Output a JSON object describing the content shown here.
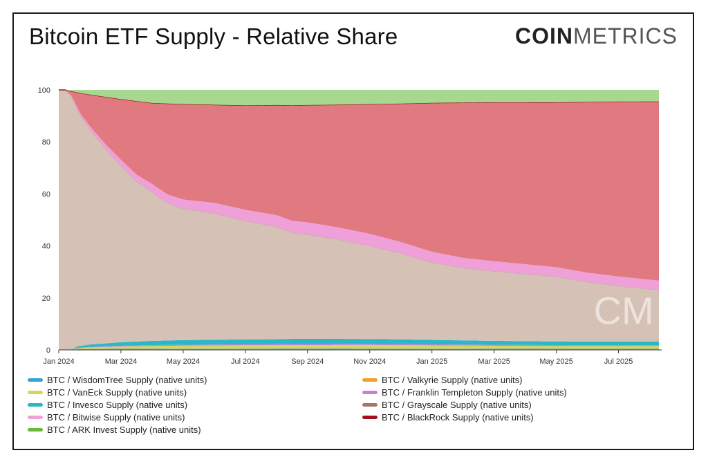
{
  "header": {
    "title": "Bitcoin ETF Supply - Relative Share",
    "brand_bold": "COIN",
    "brand_light": "METRICS"
  },
  "chart_data": {
    "type": "area",
    "stacked": "percent",
    "title": "Bitcoin ETF Supply - Relative Share",
    "xlabel": "",
    "ylabel": "",
    "ylim": [
      0,
      100
    ],
    "yticks": [
      0,
      20,
      40,
      60,
      80,
      100
    ],
    "x_tick_labels": [
      "Jan 2024",
      "Mar 2024",
      "May 2024",
      "Jul 2024",
      "Sep 2024",
      "Nov 2024",
      "Jan 2025",
      "Mar 2025",
      "May 2025",
      "Jul 2025"
    ],
    "x_tick_months": [
      0,
      2,
      4,
      6,
      8,
      10,
      12,
      14,
      16,
      18
    ],
    "x_end_month": 19.3,
    "watermark": "CM",
    "series": [
      {
        "name": "BTC / Valkyrie Supply (native units)",
        "color": "#f0a030",
        "points": [
          [
            0,
            0
          ],
          [
            0.4,
            0
          ],
          [
            0.6,
            0.15
          ],
          [
            1,
            0.2
          ],
          [
            2,
            0.25
          ],
          [
            4,
            0.3
          ],
          [
            8,
            0.35
          ],
          [
            12,
            0.3
          ],
          [
            16,
            0.25
          ],
          [
            19.3,
            0.25
          ]
        ]
      },
      {
        "name": "BTC / WisdomTree Supply (native units)",
        "color": "#3aa0d8",
        "points": [
          [
            0,
            0
          ],
          [
            0.4,
            0
          ],
          [
            0.6,
            0.1
          ],
          [
            1,
            0.15
          ],
          [
            4,
            0.15
          ],
          [
            8,
            0.2
          ],
          [
            12,
            0.15
          ],
          [
            16,
            0.15
          ],
          [
            19.3,
            0.15
          ]
        ]
      },
      {
        "name": "BTC / VanEck Supply (native units)",
        "color": "#d7d55a",
        "points": [
          [
            0,
            0
          ],
          [
            0.4,
            0
          ],
          [
            0.6,
            0.4
          ],
          [
            1,
            0.6
          ],
          [
            2,
            0.9
          ],
          [
            3,
            1.1
          ],
          [
            4,
            1.2
          ],
          [
            6,
            1.3
          ],
          [
            8,
            1.3
          ],
          [
            10,
            1.4
          ],
          [
            12,
            1.3
          ],
          [
            14,
            1.2
          ],
          [
            16,
            1.1
          ],
          [
            19.3,
            1.1
          ]
        ]
      },
      {
        "name": "BTC / Franklin Templeton Supply (native units)",
        "color": "#c77fe0",
        "points": [
          [
            0,
            0
          ],
          [
            0.4,
            0
          ],
          [
            0.6,
            0.1
          ],
          [
            1,
            0.2
          ],
          [
            2,
            0.3
          ],
          [
            4,
            0.35
          ],
          [
            8,
            0.4
          ],
          [
            12,
            0.4
          ],
          [
            16,
            0.35
          ],
          [
            19.3,
            0.35
          ]
        ]
      },
      {
        "name": "BTC / Invesco Supply (native units)",
        "color": "#28b8c8",
        "points": [
          [
            0,
            0
          ],
          [
            0.4,
            0
          ],
          [
            0.6,
            0.6
          ],
          [
            1,
            0.9
          ],
          [
            2,
            1.3
          ],
          [
            3,
            1.6
          ],
          [
            4,
            1.8
          ],
          [
            6,
            1.9
          ],
          [
            8,
            2.0
          ],
          [
            10,
            1.9
          ],
          [
            12,
            1.7
          ],
          [
            14,
            1.5
          ],
          [
            16,
            1.4
          ],
          [
            19.3,
            1.4
          ]
        ]
      },
      {
        "name": "BTC / Grayscale Supply (native units)",
        "color": "#d5c1b5",
        "points": [
          [
            0,
            100
          ],
          [
            0.15,
            99.9
          ],
          [
            0.4,
            97.5
          ],
          [
            0.7,
            88
          ],
          [
            1,
            82
          ],
          [
            1.5,
            74
          ],
          [
            2,
            67
          ],
          [
            2.5,
            61
          ],
          [
            3,
            57
          ],
          [
            3.5,
            53
          ],
          [
            4,
            51
          ],
          [
            5,
            49
          ],
          [
            6,
            46
          ],
          [
            7,
            44
          ],
          [
            7.5,
            40.5
          ],
          [
            8,
            40
          ],
          [
            9,
            38
          ],
          [
            10,
            36
          ],
          [
            11,
            33
          ],
          [
            12,
            30
          ],
          [
            13,
            28
          ],
          [
            14,
            27
          ],
          [
            15,
            26
          ],
          [
            16,
            25
          ],
          [
            17,
            23
          ],
          [
            18,
            21.5
          ],
          [
            19.3,
            20
          ]
        ]
      },
      {
        "name": "BTC / Bitwise Supply (native units)",
        "color": "#f0a0d8",
        "points": [
          [
            0,
            0
          ],
          [
            0.3,
            0
          ],
          [
            0.5,
            0.5
          ],
          [
            1,
            1.2
          ],
          [
            2,
            2.2
          ],
          [
            3,
            3
          ],
          [
            4,
            3.5
          ],
          [
            5,
            4
          ],
          [
            6,
            4.3
          ],
          [
            7,
            4.4
          ],
          [
            8,
            4.6
          ],
          [
            10,
            4.6
          ],
          [
            12,
            4.0
          ],
          [
            14,
            3.8
          ],
          [
            16,
            3.6
          ],
          [
            18,
            3.6
          ],
          [
            19.3,
            3.6
          ]
        ]
      },
      {
        "name": "BTC / BlackRock Supply (native units)",
        "color": "#e07a80",
        "points": [
          [
            0,
            0
          ],
          [
            0.2,
            0
          ],
          [
            0.4,
            1.5
          ],
          [
            0.7,
            8
          ],
          [
            1,
            12
          ],
          [
            1.5,
            18
          ],
          [
            2,
            23
          ],
          [
            2.5,
            28
          ],
          [
            3,
            31
          ],
          [
            3.5,
            35
          ],
          [
            4,
            37
          ],
          [
            5,
            38
          ],
          [
            6,
            40.5
          ],
          [
            7,
            43
          ],
          [
            8,
            45
          ],
          [
            9,
            47
          ],
          [
            10,
            50
          ],
          [
            11,
            53
          ],
          [
            12,
            57.5
          ],
          [
            13,
            60
          ],
          [
            14,
            61.5
          ],
          [
            15,
            62.5
          ],
          [
            16,
            63.5
          ],
          [
            17,
            66
          ],
          [
            18,
            67.5
          ],
          [
            19.3,
            69.5
          ]
        ]
      },
      {
        "name": "BTC / ARK Invest Supply (native units)",
        "color": "#a8d890",
        "points": [
          [
            0,
            0
          ],
          [
            0.2,
            0
          ],
          [
            0.4,
            0.5
          ],
          [
            0.7,
            1.2
          ],
          [
            1,
            1.8
          ],
          [
            2,
            3.5
          ],
          [
            3,
            5
          ],
          [
            4,
            5.5
          ],
          [
            6,
            6
          ],
          [
            8,
            5.8
          ],
          [
            10,
            5.5
          ],
          [
            12,
            5.0
          ],
          [
            14,
            4.8
          ],
          [
            16,
            4.8
          ],
          [
            18,
            4.5
          ],
          [
            19.3,
            4.5
          ]
        ]
      }
    ]
  },
  "legend": {
    "left": [
      {
        "label": "BTC / WisdomTree Supply (native units)",
        "color": "#3aa0d8"
      },
      {
        "label": "BTC / VanEck Supply (native units)",
        "color": "#d7d55a"
      },
      {
        "label": "BTC / Invesco Supply (native units)",
        "color": "#28b8c8"
      },
      {
        "label": "BTC / Bitwise Supply (native units)",
        "color": "#f0a0d8"
      },
      {
        "label": "BTC / ARK Invest Supply (native units)",
        "color": "#6cb83a"
      }
    ],
    "right": [
      {
        "label": "BTC / Valkyrie Supply (native units)",
        "color": "#f0a030"
      },
      {
        "label": "BTC / Franklin Templeton Supply (native units)",
        "color": "#c77fe0"
      },
      {
        "label": "BTC / Grayscale Supply (native units)",
        "color": "#a07868"
      },
      {
        "label": "BTC / BlackRock Supply (native units)",
        "color": "#a01020"
      }
    ]
  }
}
